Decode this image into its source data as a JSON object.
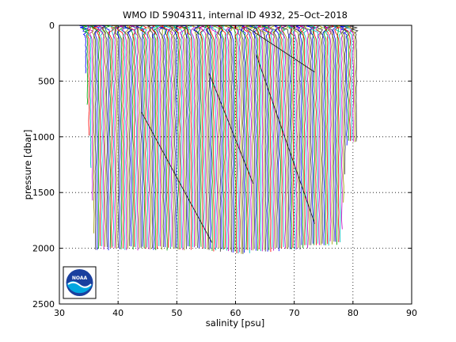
{
  "chart_data": {
    "type": "line",
    "title": "WMO ID 5904311, internal ID 4932, 25–Oct–2018",
    "xlabel": "salinity [psu]",
    "ylabel": "pressure [dbar]",
    "xlim": [
      30,
      90
    ],
    "ylim": [
      0,
      2500
    ],
    "y_reversed": true,
    "grid": true,
    "grid_style": "dotted",
    "xticks": [
      30,
      40,
      50,
      60,
      70,
      80,
      90
    ],
    "yticks": [
      0,
      500,
      1000,
      1500,
      2000,
      2500
    ],
    "profile_offset_start": 34.5,
    "profile_offset_end": 80.6,
    "profile_count": 168,
    "profile_colors": [
      "#0000ff",
      "#00a000",
      "#ff0000",
      "#00c0c0",
      "#c000c0",
      "#a0a000",
      "#404040"
    ],
    "profile_depths": {
      "x": [
        34.5,
        35.5,
        36.0,
        46.0,
        46.5,
        55.0,
        58.0,
        60.0,
        62.0,
        67.0,
        70.0,
        75.0,
        78.0,
        79.0,
        80.6
      ],
      "max_pressure": [
        430,
        1450,
        2000,
        2000,
        2000,
        2000,
        2020,
        2035,
        2030,
        2010,
        2000,
        1960,
        1950,
        1030,
        1040
      ]
    },
    "logo": "noaa-logo"
  }
}
